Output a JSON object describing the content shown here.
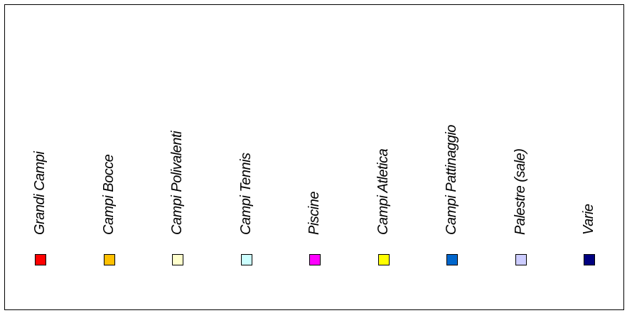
{
  "chart_data": {
    "type": "legend",
    "series": [
      {
        "name": "Grandi Campi",
        "color": "#ff0000"
      },
      {
        "name": "Campi Bocce",
        "color": "#ffc000"
      },
      {
        "name": "Campi Polivalenti",
        "color": "#ffffcc"
      },
      {
        "name": "Campi Tennis",
        "color": "#ccffff"
      },
      {
        "name": "Piscine",
        "color": "#ff00ff"
      },
      {
        "name": "Campi Atletica",
        "color": "#ffff00"
      },
      {
        "name": "Campi Pattinaggio",
        "color": "#0066cc"
      },
      {
        "name": "Palestre (sale)",
        "color": "#ccccff"
      },
      {
        "name": "Varie",
        "color": "#000080"
      }
    ]
  }
}
